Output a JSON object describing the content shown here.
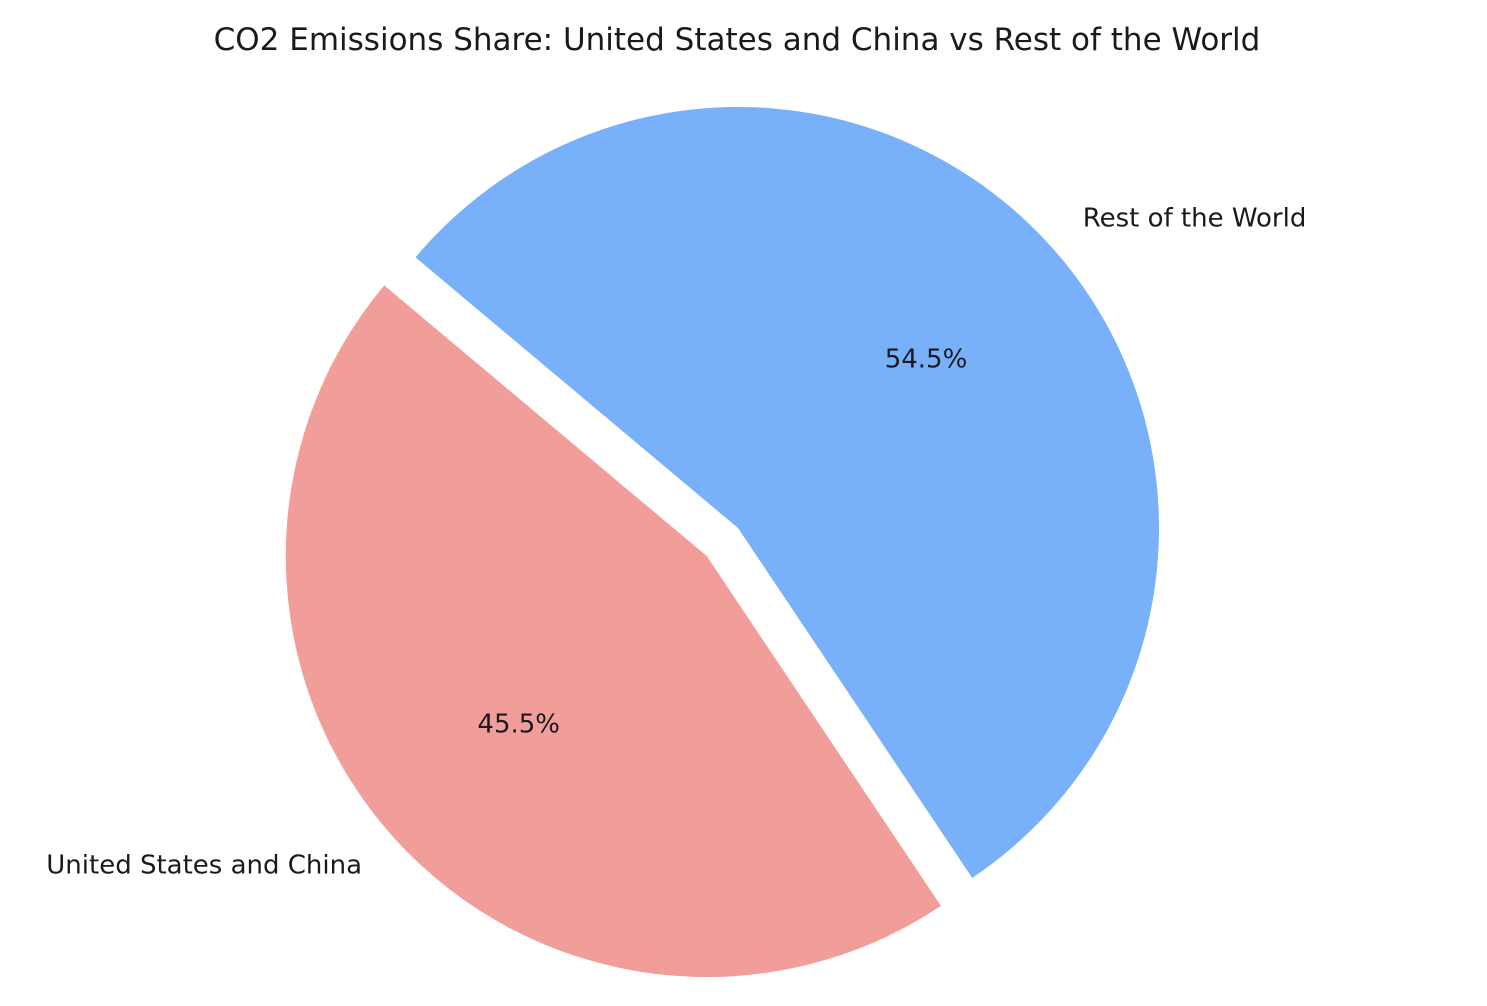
{
  "chart_data": {
    "type": "pie",
    "title": "CO2 Emissions Share: United States and China vs Rest of the World",
    "slices": [
      {
        "label": "United States and China",
        "value": 45.5,
        "pct_label": "45.5%",
        "color": "#f19e9b",
        "exploded": true
      },
      {
        "label": "Rest of the World",
        "value": 54.5,
        "pct_label": "54.5%",
        "color": "#79b0fa",
        "exploded": false
      }
    ],
    "start_angle_deg": 140,
    "direction": "counterclockwise",
    "legend": "none"
  }
}
